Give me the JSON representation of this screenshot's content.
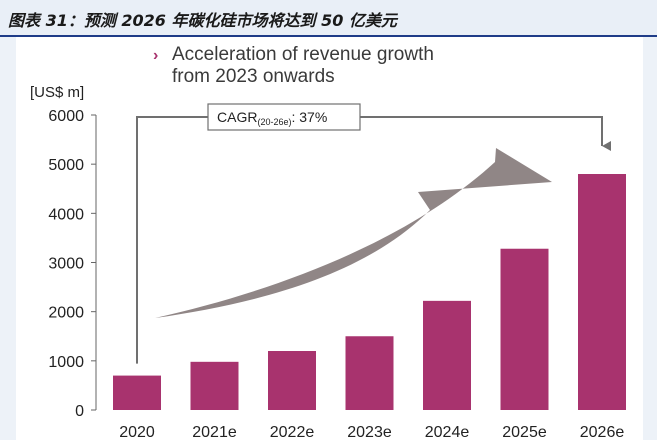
{
  "figure_title": "图表 31：预测 2026 年碳化硅市场将达到 50 亿美元",
  "chart_data": {
    "type": "bar",
    "title": "Acceleration of revenue growth from 2023 onwards",
    "title_lines": [
      "Acceleration of revenue growth",
      "from 2023 onwards"
    ],
    "bullet": "›",
    "unit_label": "[US$ m]",
    "categories": [
      "2020",
      "2021e",
      "2022e",
      "2023e",
      "2024e",
      "2025e",
      "2026e"
    ],
    "values": [
      700,
      980,
      1200,
      1500,
      2220,
      3280,
      4800
    ],
    "yticks": [
      "0",
      "1000",
      "2000",
      "3000",
      "4000",
      "5000",
      "6000"
    ],
    "ylim": [
      0,
      6000
    ],
    "grid": false,
    "annotation": {
      "prefix": "CAGR",
      "subscript": "(20-26e)",
      "suffix": ": 37%"
    },
    "colors": {
      "bar": "#a8336e",
      "arrow": "#8a7f80",
      "axis": "#666666",
      "bracket": "#707070"
    }
  }
}
